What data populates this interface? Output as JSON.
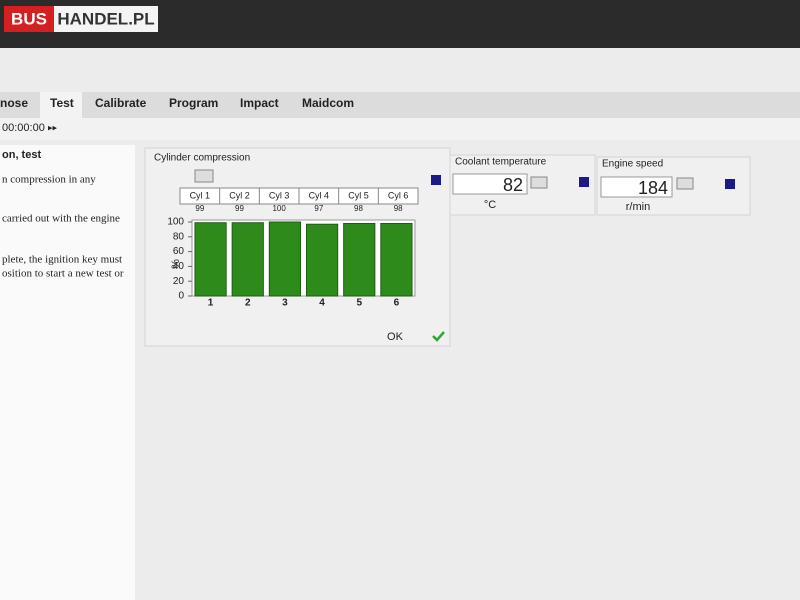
{
  "header": {
    "logo_red": "BUS",
    "logo_rest": "HANDEL.PL"
  },
  "tabs": [
    "nose",
    "Test",
    "Calibrate",
    "Program",
    "Impact",
    "Maidcom"
  ],
  "toolbar": {
    "time": "00:00:00"
  },
  "left_panel": {
    "title": "on, test",
    "lines": [
      "n compression in any",
      "carried out with the engine",
      "plete, the ignition key must",
      "osition to start a new test or"
    ]
  },
  "cylinder_table": {
    "headers": [
      "Cyl 1",
      "Cyl 2",
      "Cyl 3",
      "Cyl 4",
      "Cyl 5",
      "Cyl 6"
    ]
  },
  "chart_data": {
    "type": "bar",
    "title": "Cylinder compression",
    "ylabel": "%",
    "categories": [
      "1",
      "2",
      "3",
      "4",
      "5",
      "6"
    ],
    "values": [
      99,
      99,
      100,
      97,
      98,
      98
    ],
    "color": "#2f8a1c",
    "ylim": [
      0,
      100
    ],
    "yticks": [
      0,
      20,
      40,
      60,
      80,
      100
    ],
    "grid": false
  },
  "ok_button": "OK",
  "coolant": {
    "label": "Coolant temperature",
    "value": 82,
    "unit": "°C"
  },
  "engine": {
    "label": "Engine speed",
    "value": 184,
    "unit": "r/min"
  }
}
